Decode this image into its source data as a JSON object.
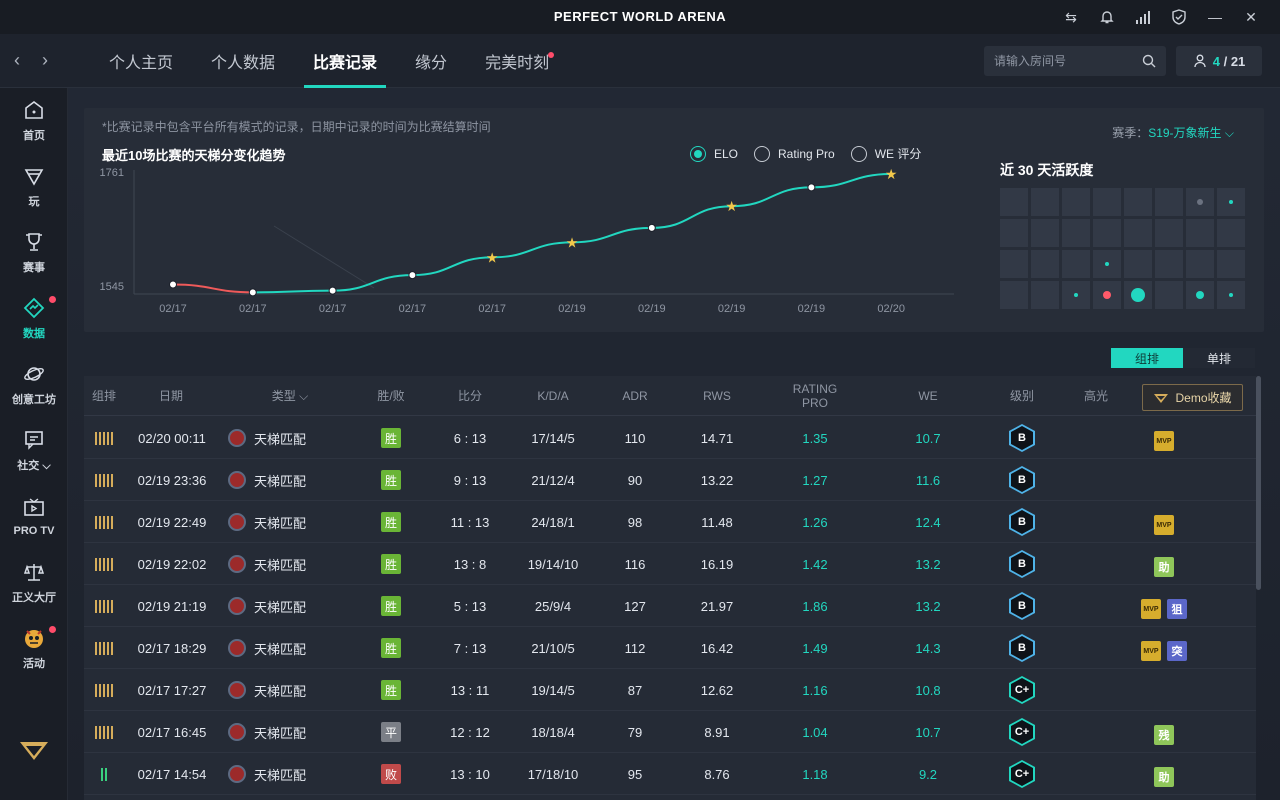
{
  "app": {
    "title": "PERFECT WORLD ARENA"
  },
  "nav": {
    "tabs": [
      {
        "label": "个人主页",
        "active": false,
        "dot": false
      },
      {
        "label": "个人数据",
        "active": false,
        "dot": false
      },
      {
        "label": "比赛记录",
        "active": true,
        "dot": false
      },
      {
        "label": "缘分",
        "active": false,
        "dot": false
      },
      {
        "label": "完美时刻",
        "active": false,
        "dot": true
      }
    ],
    "search_placeholder": "请输入房间号",
    "room_current": "4",
    "room_sep": "/",
    "room_total": "21"
  },
  "sidebar": {
    "items": [
      {
        "label": "首页",
        "icon": "home-icon"
      },
      {
        "label": "玩",
        "icon": "play-icon"
      },
      {
        "label": "赛事",
        "icon": "trophy-icon"
      },
      {
        "label": "数据",
        "icon": "data-icon",
        "active": true,
        "dot": true
      },
      {
        "label": "创意工坊",
        "icon": "planet-icon"
      },
      {
        "label": "社交 ⌵",
        "icon": "chat-icon"
      },
      {
        "label": "PRO TV",
        "icon": "tv-icon"
      },
      {
        "label": "正义大厅",
        "icon": "scale-icon"
      },
      {
        "label": "活动",
        "icon": "activity-icon",
        "dot": true
      }
    ]
  },
  "summary": {
    "note": "*比赛记录中包含平台所有模式的记录，日期中记录的时间为比赛结算时间",
    "season_label": "赛季：",
    "season_value": "S19-万象新生",
    "chart_title": "最近10场比赛的天梯分变化趋势",
    "radios": [
      {
        "label": "ELO",
        "selected": true
      },
      {
        "label": "Rating Pro",
        "selected": false
      },
      {
        "label": "WE 评分",
        "selected": false
      }
    ],
    "activity_title": "近 30 天活跃度",
    "activity": [
      0,
      0,
      0,
      0,
      0,
      0,
      1,
      2,
      0,
      0,
      0,
      0,
      0,
      0,
      0,
      0,
      0,
      0,
      0,
      2,
      0,
      0,
      0,
      0,
      0,
      0,
      2,
      3,
      4,
      0,
      5,
      2
    ]
  },
  "chart_data": {
    "type": "line",
    "categories": [
      "02/17",
      "02/17",
      "02/17",
      "02/17",
      "02/17",
      "02/19",
      "02/19",
      "02/19",
      "02/19",
      "02/20"
    ],
    "values": [
      1562,
      1548,
      1551,
      1579,
      1611,
      1638,
      1664,
      1703,
      1737,
      1761
    ],
    "star": [
      false,
      false,
      false,
      false,
      true,
      true,
      false,
      true,
      false,
      true
    ],
    "y_labels": [
      "1761",
      "1545"
    ],
    "ylim": [
      1545,
      1761
    ]
  },
  "table": {
    "toggle": [
      "组排",
      "单排"
    ],
    "headers": [
      "组排",
      "日期",
      "类型",
      "胜/败",
      "比分",
      "K/D/A",
      "ADR",
      "RWS",
      "RATING PRO",
      "WE",
      "级别",
      "高光"
    ],
    "demo_label": "Demo收藏",
    "rows": [
      {
        "bars": "gold",
        "date": "02/20 00:11",
        "type": "天梯匹配",
        "result": "胜",
        "rc": "win",
        "score": "6 : 13",
        "kda": "17/14/5",
        "adr": "110",
        "rws": "14.71",
        "rating": "1.35",
        "we": "10.7",
        "rank": "B",
        "badges": [
          "mvp"
        ]
      },
      {
        "bars": "gold",
        "date": "02/19 23:36",
        "type": "天梯匹配",
        "result": "胜",
        "rc": "win",
        "score": "9 : 13",
        "kda": "21/12/4",
        "adr": "90",
        "rws": "13.22",
        "rating": "1.27",
        "we": "11.6",
        "rank": "B",
        "badges": []
      },
      {
        "bars": "gold",
        "date": "02/19 22:49",
        "type": "天梯匹配",
        "result": "胜",
        "rc": "win",
        "score": "11 : 13",
        "kda": "24/18/1",
        "adr": "98",
        "rws": "11.48",
        "rating": "1.26",
        "we": "12.4",
        "rank": "B",
        "badges": [
          "mvp"
        ]
      },
      {
        "bars": "gold",
        "date": "02/19 22:02",
        "type": "天梯匹配",
        "result": "胜",
        "rc": "win",
        "score": "13 : 8",
        "kda": "19/14/10",
        "adr": "116",
        "rws": "16.19",
        "rating": "1.42",
        "we": "13.2",
        "rank": "B",
        "badges": [
          "助"
        ]
      },
      {
        "bars": "gold",
        "date": "02/19 21:19",
        "type": "天梯匹配",
        "result": "胜",
        "rc": "win",
        "score": "5 : 13",
        "kda": "25/9/4",
        "adr": "127",
        "rws": "21.97",
        "rating": "1.86",
        "we": "13.2",
        "rank": "B",
        "badges": [
          "mvp",
          "狙"
        ]
      },
      {
        "bars": "gold",
        "date": "02/17 18:29",
        "type": "天梯匹配",
        "result": "胜",
        "rc": "win",
        "score": "7 : 13",
        "kda": "21/10/5",
        "adr": "112",
        "rws": "16.42",
        "rating": "1.49",
        "we": "14.3",
        "rank": "B",
        "badges": [
          "mvp",
          "突"
        ]
      },
      {
        "bars": "gold",
        "date": "02/17 17:27",
        "type": "天梯匹配",
        "result": "胜",
        "rc": "win",
        "score": "13 : 11",
        "kda": "19/14/5",
        "adr": "87",
        "rws": "12.62",
        "rating": "1.16",
        "we": "10.8",
        "rank": "C+",
        "badges": []
      },
      {
        "bars": "gold",
        "date": "02/17 16:45",
        "type": "天梯匹配",
        "result": "平",
        "rc": "draw",
        "score": "12 : 12",
        "kda": "18/18/4",
        "adr": "79",
        "rws": "8.91",
        "rating": "1.04",
        "we": "10.7",
        "rank": "C+",
        "badges": [
          "残"
        ]
      },
      {
        "bars": "green",
        "date": "02/17 14:54",
        "type": "天梯匹配",
        "result": "败",
        "rc": "loss",
        "score": "13 : 10",
        "kda": "17/18/10",
        "adr": "95",
        "rws": "8.76",
        "rating": "1.18",
        "we": "9.2",
        "rank": "C+",
        "badges": [
          "助"
        ]
      }
    ]
  }
}
